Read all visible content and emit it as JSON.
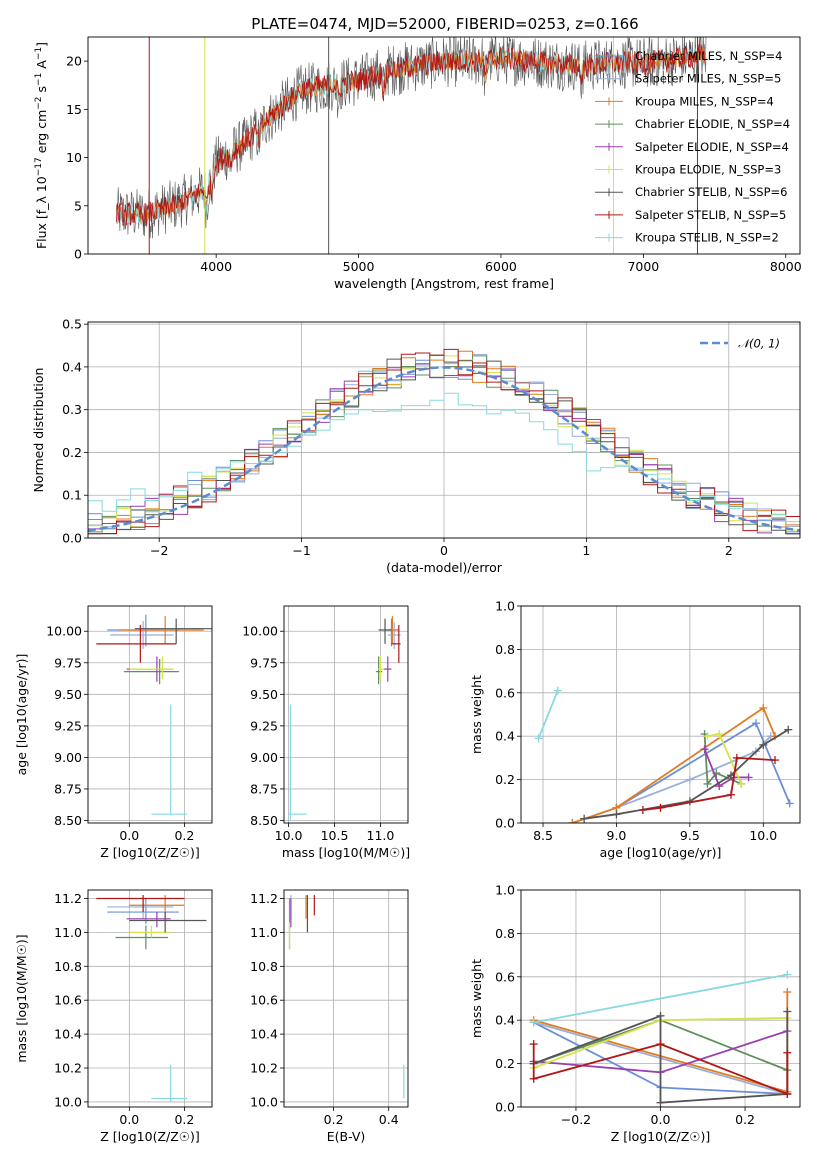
{
  "title": "PLATE=0474, MJD=52000, FIBERID=0253, z=0.166",
  "colors": {
    "chabrier_miles": "#6a8fd8",
    "salpeter_miles": "#9aaed8",
    "kroupa_miles": "#e07b22",
    "chabrier_elodie": "#5f8f5f",
    "salpeter_elodie": "#9a3fb0",
    "kroupa_elodie": "#d6e24a",
    "chabrier_stelib": "#555555",
    "salpeter_stelib": "#b01818",
    "kroupa_stelib": "#86d9df",
    "normal": "#5b8bd0",
    "grid": "#b0b0b0"
  },
  "chart_data": [
    {
      "id": "spectrum",
      "type": "line",
      "xlabel": "wavelength [Angstrom, rest frame]",
      "ylabel": "Flux [f_λ 10^-17 erg cm^-2 s^-1 A^-1]",
      "xlim": [
        3100,
        8100
      ],
      "ylim": [
        0,
        22.5
      ],
      "xticks": [
        4000,
        5000,
        6000,
        7000,
        8000
      ],
      "yticks": [
        0,
        5,
        10,
        15,
        20
      ],
      "grid": false,
      "legend_position": "right",
      "legend": [
        "Chabrier MILES, N_SSP=4",
        "Salpeter MILES, N_SSP=5",
        "Kroupa MILES, N_SSP=4",
        "Chabrier ELODIE, N_SSP=4",
        "Salpeter ELODIE, N_SSP=4",
        "Kroupa ELODIE, N_SSP=3",
        "Chabrier STELIB, N_SSP=6",
        "Salpeter STELIB, N_SSP=5",
        "Kroupa STELIB, N_SSP=2"
      ],
      "continuum": {
        "x": [
          3300,
          3500,
          3700,
          3900,
          4000,
          4200,
          4400,
          4600,
          4800,
          5000,
          5200,
          5400,
          5600,
          5800,
          6000,
          6200,
          6400,
          6600,
          6800,
          7000,
          7200,
          7400
        ],
        "y": [
          4.2,
          4.1,
          5.0,
          6.5,
          9.5,
          11.5,
          14.5,
          17.0,
          17.5,
          18.0,
          19.0,
          19.5,
          20.0,
          20.0,
          20.3,
          20.0,
          19.7,
          19.5,
          19.8,
          19.8,
          20.1,
          20.6
        ]
      }
    },
    {
      "id": "residuals",
      "type": "line",
      "xlabel": "(data-model)/error",
      "ylabel": "Normed distribution",
      "xlim": [
        -2.5,
        2.5
      ],
      "ylim": [
        0,
        0.505
      ],
      "xticks": [
        -2,
        -1,
        0,
        1,
        2
      ],
      "yticks": [
        0.0,
        0.1,
        0.2,
        0.3,
        0.4,
        0.5
      ],
      "grid": true,
      "legend_position": "top-right",
      "legend": [
        "𝒩(0, 1)"
      ],
      "bin_width": 0.1,
      "kroupa_stelib_profile": {
        "x": [
          -2.5,
          -2.0,
          -1.5,
          -1.0,
          -0.5,
          0.0,
          0.5,
          1.0,
          1.5,
          2.0,
          2.5
        ],
        "y": [
          0.07,
          0.11,
          0.16,
          0.22,
          0.3,
          0.34,
          0.29,
          0.18,
          0.14,
          0.07,
          0.03
        ]
      }
    },
    {
      "id": "age_vs_Z",
      "type": "scatter",
      "xlabel": "Z [log10(Z/Z☉)]",
      "ylabel": "age  [log10(age/yr)]",
      "xlim": [
        -0.15,
        0.3
      ],
      "ylim": [
        8.48,
        10.2
      ],
      "xticks": [
        0.0,
        0.2
      ],
      "yticks": [
        8.5,
        8.75,
        9.0,
        9.25,
        9.5,
        9.75,
        10.0
      ],
      "grid": true,
      "points": [
        {
          "series": "Chabrier MILES",
          "x": 0.06,
          "y": 10.01,
          "xlo": -0.08,
          "xhi": 0.18,
          "ylo": 9.88,
          "yhi": 10.13
        },
        {
          "series": "Salpeter MILES",
          "x": 0.05,
          "y": 9.97,
          "xlo": -0.07,
          "xhi": 0.16,
          "ylo": 9.86,
          "yhi": 10.08
        },
        {
          "series": "Kroupa MILES",
          "x": 0.13,
          "y": 10.01,
          "xlo": -0.04,
          "xhi": 0.27,
          "ylo": 9.9,
          "yhi": 10.12
        },
        {
          "series": "Chabrier ELODIE",
          "x": 0.11,
          "y": 9.68,
          "xlo": -0.02,
          "xhi": 0.18,
          "ylo": 9.58,
          "yhi": 9.78
        },
        {
          "series": "Salpeter ELODIE",
          "x": 0.1,
          "y": 9.7,
          "xlo": -0.01,
          "xhi": 0.16,
          "ylo": 9.6,
          "yhi": 9.8
        },
        {
          "series": "Kroupa ELODIE",
          "x": 0.12,
          "y": 9.7,
          "xlo": 0.0,
          "xhi": 0.16,
          "ylo": 9.62,
          "yhi": 9.8
        },
        {
          "series": "Chabrier STELIB",
          "x": 0.17,
          "y": 10.02,
          "xlo": 0.02,
          "xhi": 0.3,
          "ylo": 9.9,
          "yhi": 10.1
        },
        {
          "series": "Salpeter STELIB",
          "x": 0.04,
          "y": 9.9,
          "xlo": -0.12,
          "xhi": 0.17,
          "ylo": 9.75,
          "yhi": 10.05
        },
        {
          "series": "Kroupa STELIB",
          "x": 0.15,
          "y": 8.55,
          "xlo": 0.08,
          "xhi": 0.21,
          "ylo": 8.55,
          "yhi": 9.42
        }
      ]
    },
    {
      "id": "age_vs_mass",
      "type": "scatter",
      "xlabel": "mass [log10(M/M☉)]",
      "ylabel": "",
      "xlim": [
        9.95,
        11.3
      ],
      "ylim": [
        8.48,
        10.2
      ],
      "xticks": [
        10.0,
        10.5,
        11.0
      ],
      "yticks": [
        8.5,
        8.75,
        9.0,
        9.25,
        9.5,
        9.75,
        10.0
      ],
      "grid": true,
      "points": [
        {
          "series": "Chabrier MILES",
          "x": 11.12,
          "y": 10.01,
          "xlo": 11.05,
          "xhi": 11.2,
          "ylo": 9.88,
          "yhi": 10.1
        },
        {
          "series": "Salpeter MILES",
          "x": 11.15,
          "y": 9.97,
          "xlo": 11.08,
          "xhi": 11.22,
          "ylo": 9.86,
          "yhi": 10.07
        },
        {
          "series": "Kroupa MILES",
          "x": 11.13,
          "y": 10.01,
          "xlo": 11.08,
          "xhi": 11.2,
          "ylo": 9.9,
          "yhi": 10.12
        },
        {
          "series": "Chabrier ELODIE",
          "x": 10.98,
          "y": 9.68,
          "xlo": 10.95,
          "xhi": 11.02,
          "ylo": 9.58,
          "yhi": 9.8
        },
        {
          "series": "Salpeter ELODIE",
          "x": 11.08,
          "y": 9.7,
          "xlo": 11.03,
          "xhi": 11.12,
          "ylo": 9.6,
          "yhi": 9.8
        },
        {
          "series": "Kroupa ELODIE",
          "x": 11.0,
          "y": 9.7,
          "xlo": 10.97,
          "xhi": 11.04,
          "ylo": 9.62,
          "yhi": 9.8
        },
        {
          "series": "Chabrier STELIB",
          "x": 11.05,
          "y": 10.01,
          "xlo": 10.98,
          "xhi": 11.12,
          "ylo": 9.9,
          "yhi": 10.1
        },
        {
          "series": "Salpeter STELIB",
          "x": 11.2,
          "y": 9.9,
          "xlo": 11.12,
          "xhi": 11.22,
          "ylo": 9.75,
          "yhi": 10.05
        },
        {
          "series": "Kroupa STELIB",
          "x": 10.02,
          "y": 8.55,
          "xlo": 10.0,
          "xhi": 10.2,
          "ylo": 8.5,
          "yhi": 9.42
        }
      ]
    },
    {
      "id": "weight_vs_age",
      "type": "line",
      "xlabel": "age  [log10(age/yr)]",
      "ylabel": "mass weight",
      "xlim": [
        8.35,
        10.25
      ],
      "ylim": [
        0.0,
        1.0
      ],
      "xticks": [
        8.5,
        9.0,
        9.5,
        10.0
      ],
      "yticks": [
        0.0,
        0.2,
        0.4,
        0.6,
        0.8,
        1.0
      ],
      "grid": true,
      "series": [
        {
          "name": "Chabrier MILES",
          "x": [
            9.0,
            9.95,
            10.18
          ],
          "y": [
            0.07,
            0.46,
            0.09
          ]
        },
        {
          "name": "Salpeter MILES",
          "x": [
            8.7,
            9.0,
            9.5,
            9.95,
            10.05
          ],
          "y": [
            0.0,
            0.07,
            0.2,
            0.33,
            0.4
          ]
        },
        {
          "name": "Kroupa MILES",
          "x": [
            8.7,
            9.0,
            10.0,
            10.08
          ],
          "y": [
            0.0,
            0.07,
            0.53,
            0.4
          ]
        },
        {
          "name": "Chabrier ELODIE",
          "x": [
            9.6,
            9.62,
            9.68,
            9.85
          ],
          "y": [
            0.41,
            0.18,
            0.23,
            0.18
          ]
        },
        {
          "name": "Salpeter ELODIE",
          "x": [
            9.6,
            9.7,
            9.8,
            9.9
          ],
          "y": [
            0.34,
            0.17,
            0.21,
            0.21
          ]
        },
        {
          "name": "Kroupa ELODIE",
          "x": [
            9.62,
            9.7,
            9.85
          ],
          "y": [
            0.4,
            0.41,
            0.18
          ]
        },
        {
          "name": "Chabrier STELIB",
          "x": [
            8.78,
            9.0,
            9.5,
            9.78,
            10.0,
            10.17
          ],
          "y": [
            0.02,
            0.04,
            0.1,
            0.22,
            0.36,
            0.43
          ]
        },
        {
          "name": "Salpeter STELIB",
          "x": [
            9.18,
            9.3,
            9.78,
            9.82,
            10.08
          ],
          "y": [
            0.06,
            0.07,
            0.13,
            0.3,
            0.29
          ]
        },
        {
          "name": "Kroupa STELIB",
          "x": [
            8.47,
            8.6
          ],
          "y": [
            0.39,
            0.61
          ]
        }
      ]
    },
    {
      "id": "mass_vs_Z",
      "type": "scatter",
      "xlabel": "Z [log10(Z/Z☉)]",
      "ylabel": "mass [log10(M/M☉)]",
      "xlim": [
        -0.15,
        0.3
      ],
      "ylim": [
        9.97,
        11.25
      ],
      "xticks": [
        0.0,
        0.2
      ],
      "yticks": [
        10.0,
        10.2,
        10.4,
        10.6,
        10.8,
        11.0,
        11.2
      ],
      "grid": true,
      "points": [
        {
          "series": "Chabrier MILES",
          "x": 0.06,
          "y": 11.12,
          "xlo": -0.08,
          "xhi": 0.18,
          "ylo": 11.05,
          "yhi": 11.2
        },
        {
          "series": "Salpeter MILES",
          "x": 0.05,
          "y": 11.15,
          "xlo": -0.08,
          "xhi": 0.16,
          "ylo": 11.08,
          "yhi": 11.22
        },
        {
          "series": "Kroupa MILES",
          "x": 0.13,
          "y": 11.16,
          "xlo": 0.0,
          "xhi": 0.2,
          "ylo": 11.08,
          "yhi": 11.22
        },
        {
          "series": "Chabrier ELODIE",
          "x": 0.06,
          "y": 10.97,
          "xlo": -0.05,
          "xhi": 0.14,
          "ylo": 10.9,
          "yhi": 11.04
        },
        {
          "series": "Salpeter ELODIE",
          "x": 0.1,
          "y": 11.08,
          "xlo": -0.01,
          "xhi": 0.15,
          "ylo": 11.03,
          "yhi": 11.12
        },
        {
          "series": "Kroupa ELODIE",
          "x": 0.08,
          "y": 11.0,
          "xlo": 0.0,
          "xhi": 0.15,
          "ylo": 10.97,
          "yhi": 11.04
        },
        {
          "series": "Chabrier STELIB",
          "x": 0.13,
          "y": 11.07,
          "xlo": 0.0,
          "xhi": 0.28,
          "ylo": 11.0,
          "yhi": 11.12
        },
        {
          "series": "Salpeter STELIB",
          "x": 0.05,
          "y": 11.2,
          "xlo": -0.12,
          "xhi": 0.2,
          "ylo": 11.12,
          "yhi": 11.22
        },
        {
          "series": "Kroupa STELIB",
          "x": 0.15,
          "y": 10.02,
          "xlo": 0.08,
          "xhi": 0.21,
          "ylo": 10.0,
          "yhi": 10.22
        }
      ]
    },
    {
      "id": "mass_vs_ebv",
      "type": "scatter",
      "xlabel": "E(B-V)",
      "ylabel": "",
      "xlim": [
        0.02,
        0.47
      ],
      "ylim": [
        9.97,
        11.25
      ],
      "xticks": [
        0.2,
        0.4
      ],
      "yticks": [
        10.0,
        10.2,
        10.4,
        10.6,
        10.8,
        11.0,
        11.2
      ],
      "grid": true,
      "points": [
        {
          "series": "Chabrier MILES",
          "x": 0.04,
          "y": 11.12,
          "ylo": 11.05,
          "yhi": 11.2
        },
        {
          "series": "Salpeter MILES",
          "x": 0.045,
          "y": 11.15,
          "ylo": 11.08,
          "yhi": 11.22
        },
        {
          "series": "Kroupa MILES",
          "x": 0.1,
          "y": 11.16,
          "ylo": 11.08,
          "yhi": 11.22
        },
        {
          "series": "Chabrier ELODIE",
          "x": 0.04,
          "y": 10.97,
          "ylo": 10.9,
          "yhi": 11.04
        },
        {
          "series": "Salpeter ELODIE",
          "x": 0.045,
          "y": 11.08,
          "ylo": 11.03,
          "yhi": 11.2
        },
        {
          "series": "Kroupa ELODIE",
          "x": 0.04,
          "y": 11.0,
          "ylo": 10.9,
          "yhi": 11.06
        },
        {
          "series": "Chabrier STELIB",
          "x": 0.105,
          "y": 11.07,
          "ylo": 11.0,
          "yhi": 11.22
        },
        {
          "series": "Salpeter STELIB",
          "x": 0.13,
          "y": 11.2,
          "ylo": 11.1,
          "yhi": 11.22
        },
        {
          "series": "Kroupa STELIB",
          "x": 0.455,
          "y": 10.02,
          "ylo": 10.02,
          "yhi": 10.22
        }
      ]
    },
    {
      "id": "weight_vs_Z",
      "type": "line",
      "xlabel": "Z [log10(Z/Z☉)]",
      "ylabel": "mass weight",
      "xlim": [
        -0.33,
        0.33
      ],
      "ylim": [
        0.0,
        1.0
      ],
      "xticks": [
        -0.2,
        0.0,
        0.2
      ],
      "yticks": [
        0.0,
        0.2,
        0.4,
        0.6,
        0.8,
        1.0
      ],
      "grid": true,
      "series": [
        {
          "name": "Chabrier MILES",
          "x": [
            -0.3,
            0.0,
            0.3
          ],
          "y": [
            0.39,
            0.09,
            0.06
          ]
        },
        {
          "name": "Salpeter MILES",
          "x": [
            -0.3,
            0.3
          ],
          "y": [
            0.39,
            0.06
          ]
        },
        {
          "name": "Kroupa MILES",
          "x": [
            -0.3,
            0.3,
            0.3
          ],
          "y": [
            0.4,
            0.07,
            0.53
          ]
        },
        {
          "name": "Chabrier ELODIE",
          "x": [
            -0.3,
            0.0,
            0.3
          ],
          "y": [
            0.2,
            0.4,
            0.17
          ]
        },
        {
          "name": "Salpeter ELODIE",
          "x": [
            -0.3,
            0.0,
            0.3
          ],
          "y": [
            0.21,
            0.16,
            0.35
          ]
        },
        {
          "name": "Kroupa ELODIE",
          "x": [
            -0.3,
            0.0,
            0.3
          ],
          "y": [
            0.18,
            0.4,
            0.41
          ]
        },
        {
          "name": "Chabrier STELIB",
          "x": [
            -0.3,
            0.0,
            0.0,
            0.3,
            0.3
          ],
          "y": [
            0.2,
            0.42,
            0.02,
            0.06,
            0.44
          ]
        },
        {
          "name": "Salpeter STELIB",
          "x": [
            -0.3,
            -0.3,
            0.0,
            0.3,
            0.3
          ],
          "y": [
            0.29,
            0.13,
            0.29,
            0.06,
            0.25
          ]
        },
        {
          "name": "Kroupa STELIB",
          "x": [
            -0.3,
            0.3
          ],
          "y": [
            0.39,
            0.61
          ]
        }
      ]
    }
  ]
}
